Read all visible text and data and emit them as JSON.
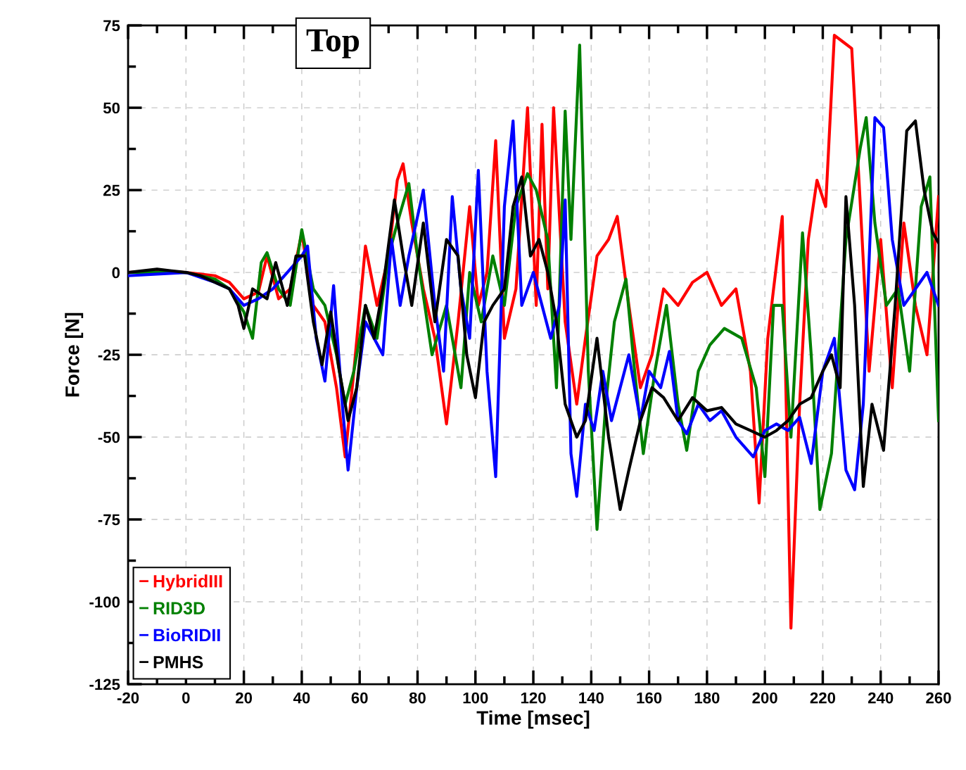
{
  "chart_data": {
    "type": "line",
    "title": "Top",
    "xlabel": "Time [msec]",
    "ylabel": "Force [N]",
    "xlim": [
      -20,
      260
    ],
    "ylim": [
      -125,
      75
    ],
    "xticks": [
      -20,
      {
        "value": -10,
        "label": null
      },
      0,
      {
        "value": 10,
        "label": null
      },
      20,
      {
        "value": 30,
        "label": null
      },
      40,
      {
        "value": 50,
        "label": null
      },
      60,
      {
        "value": 70,
        "label": null
      },
      80,
      {
        "value": 90,
        "label": null
      },
      100,
      {
        "value": 110,
        "label": null
      },
      120,
      {
        "value": 130,
        "label": null
      },
      140,
      {
        "value": 150,
        "label": null
      },
      160,
      {
        "value": 170,
        "label": null
      },
      180,
      {
        "value": 190,
        "label": null
      },
      200,
      {
        "value": 210,
        "label": null
      },
      220,
      {
        "value": 230,
        "label": null
      },
      240,
      {
        "value": 250,
        "label": null
      },
      260
    ],
    "yticks": [
      -125,
      {
        "value": -112.5,
        "label": null
      },
      -100,
      {
        "value": -87.5,
        "label": null
      },
      -75,
      {
        "value": -62.5,
        "label": null
      },
      -50,
      {
        "value": -37.5,
        "label": null
      },
      -25,
      {
        "value": -12.5,
        "label": null
      },
      0,
      {
        "value": 12.5,
        "label": null
      },
      25,
      {
        "value": 37.5,
        "label": null
      },
      50,
      {
        "value": 62.5,
        "label": null
      },
      75
    ],
    "grid": true,
    "legend": "bottom left",
    "line_style": "solid",
    "marker": "none",
    "series": [
      {
        "name": "HybridIII",
        "color": "#ff0000",
        "x": [
          -20,
          -10,
          0,
          10,
          15,
          20,
          25,
          28,
          32,
          36,
          40,
          44,
          48,
          52,
          55,
          58,
          62,
          66,
          70,
          73,
          75,
          78,
          82,
          86,
          90,
          94,
          98,
          101,
          104,
          107,
          110,
          114,
          118,
          121,
          123,
          125,
          127,
          131,
          135,
          138,
          142,
          146,
          149,
          153,
          157,
          161,
          165,
          170,
          175,
          180,
          185,
          190,
          195,
          198,
          201,
          203,
          206,
          209,
          212,
          215,
          218,
          221,
          224,
          227,
          230,
          233,
          236,
          240,
          244,
          248,
          252,
          256,
          260
        ],
        "values": [
          0,
          0.5,
          0,
          -1,
          -3,
          -8,
          -6,
          5,
          -8,
          -5,
          12,
          -10,
          -15,
          -35,
          -56,
          -30,
          8,
          -10,
          5,
          28,
          33,
          15,
          -5,
          -20,
          -46,
          -15,
          20,
          -10,
          0,
          40,
          -20,
          -5,
          50,
          -10,
          45,
          -5,
          50,
          -15,
          -40,
          -20,
          5,
          10,
          17,
          -10,
          -35,
          -25,
          -5,
          -10,
          -3,
          0,
          -10,
          -5,
          -30,
          -70,
          -20,
          -5,
          17,
          -108,
          -40,
          10,
          28,
          20,
          72,
          70,
          68,
          20,
          -30,
          10,
          -35,
          15,
          -10,
          -25,
          23
        ]
      },
      {
        "name": "RID3D",
        "color": "#008000",
        "x": [
          -20,
          0,
          10,
          15,
          20,
          23,
          26,
          28,
          32,
          36,
          40,
          44,
          48,
          52,
          55,
          58,
          62,
          66,
          70,
          73,
          77,
          80,
          85,
          90,
          95,
          98,
          102,
          106,
          110,
          114,
          118,
          121,
          125,
          128,
          131,
          133,
          136,
          139,
          142,
          145,
          148,
          152,
          155,
          158,
          162,
          166,
          170,
          173,
          177,
          181,
          186,
          192,
          197,
          200,
          203,
          206,
          209,
          213,
          216,
          219,
          223,
          228,
          233,
          235,
          238,
          242,
          246,
          250,
          254,
          257,
          260
        ],
        "values": [
          0,
          0,
          -2,
          -5,
          -12,
          -20,
          3,
          6,
          -5,
          -10,
          13,
          -5,
          -10,
          -25,
          -40,
          -30,
          -10,
          -20,
          5,
          15,
          27,
          5,
          -25,
          -10,
          -35,
          0,
          -15,
          5,
          -10,
          20,
          30,
          25,
          10,
          -35,
          49,
          10,
          69,
          -30,
          -78,
          -40,
          -15,
          -2,
          -30,
          -55,
          -30,
          -10,
          -40,
          -54,
          -30,
          -22,
          -17,
          -20,
          -35,
          -62,
          -10,
          -10,
          -50,
          12,
          -25,
          -72,
          -55,
          10,
          38,
          47,
          15,
          -10,
          -5,
          -30,
          20,
          29,
          -45
        ]
      },
      {
        "name": "BioRIDII",
        "color": "#0000ff",
        "x": [
          -20,
          0,
          10,
          15,
          20,
          25,
          30,
          35,
          40,
          42,
          45,
          48,
          51,
          54,
          56,
          59,
          62,
          65,
          68,
          71,
          74,
          77,
          82,
          86,
          89,
          92,
          95,
          98,
          101,
          104,
          107,
          110,
          113,
          116,
          120,
          123,
          126,
          129,
          131,
          133,
          135,
          138,
          141,
          144,
          147,
          150,
          153,
          157,
          160,
          164,
          167,
          170,
          173,
          177,
          181,
          185,
          190,
          196,
          200,
          204,
          208,
          212,
          216,
          220,
          224,
          228,
          231,
          234,
          238,
          241,
          244,
          248,
          252,
          256,
          260
        ],
        "values": [
          -1,
          0,
          -3,
          -5,
          -10,
          -8,
          -5,
          0,
          5,
          8,
          -20,
          -33,
          -4,
          -40,
          -60,
          -35,
          -15,
          -20,
          -25,
          10,
          -10,
          5,
          25,
          -10,
          -30,
          23,
          -5,
          -20,
          31,
          -30,
          -62,
          20,
          46,
          -10,
          0,
          -10,
          -20,
          -10,
          22,
          -55,
          -68,
          -40,
          -48,
          -30,
          -45,
          -35,
          -25,
          -45,
          -30,
          -35,
          -24,
          -45,
          -49,
          -40,
          -45,
          -42,
          -50,
          -56,
          -48,
          -46,
          -48,
          -44,
          -58,
          -30,
          -20,
          -60,
          -66,
          -40,
          47,
          44,
          10,
          -10,
          -5,
          0,
          -10
        ]
      },
      {
        "name": "PMHS",
        "color": "#000000",
        "x": [
          -20,
          -10,
          -5,
          0,
          5,
          10,
          15,
          18,
          20,
          23,
          28,
          31,
          35,
          38,
          41,
          44,
          47,
          50,
          53,
          56,
          59,
          62,
          65,
          68,
          72,
          75,
          78,
          82,
          86,
          90,
          94,
          97,
          100,
          103,
          106,
          110,
          113,
          116,
          119,
          122,
          125,
          128,
          131,
          135,
          138,
          142,
          146,
          150,
          153,
          157,
          161,
          165,
          170,
          175,
          180,
          185,
          190,
          195,
          200,
          204,
          208,
          212,
          216,
          220,
          223,
          226,
          228,
          231,
          234,
          237,
          241,
          245,
          249,
          252,
          255,
          258,
          260
        ],
        "values": [
          0,
          1,
          0.5,
          0,
          -1,
          -3,
          -5,
          -10,
          -17,
          -5,
          -8,
          3,
          -10,
          5,
          5,
          -15,
          -28,
          -12,
          -30,
          -45,
          -35,
          -10,
          -20,
          -5,
          22,
          5,
          -10,
          15,
          -15,
          10,
          5,
          -25,
          -38,
          -15,
          -10,
          -5,
          20,
          29,
          5,
          10,
          0,
          -15,
          -40,
          -50,
          -45,
          -20,
          -50,
          -72,
          -60,
          -45,
          -35,
          -38,
          -45,
          -38,
          -42,
          -41,
          -46,
          -48,
          -50,
          -48,
          -45,
          -40,
          -38,
          -30,
          -25,
          -35,
          23,
          -10,
          -65,
          -40,
          -54,
          -10,
          43,
          46,
          25,
          12,
          9
        ]
      }
    ]
  }
}
